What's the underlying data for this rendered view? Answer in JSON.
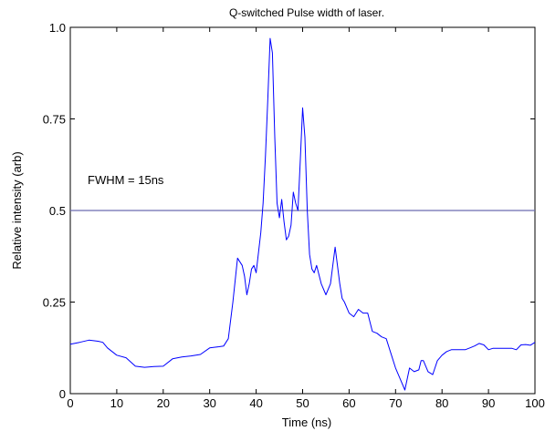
{
  "chart_data": {
    "type": "line",
    "title": "Q-switched Pulse width of laser.",
    "xlabel": "Time (ns)",
    "ylabel": "Relative intensity (arb)",
    "xlim": [
      0,
      100
    ],
    "ylim": [
      0,
      1.0
    ],
    "grid": false,
    "x_ticks": [
      0,
      10,
      20,
      30,
      40,
      50,
      60,
      70,
      80,
      90,
      100
    ],
    "x_tick_labels": [
      "0",
      "10",
      "20",
      "30",
      "40",
      "50",
      "60",
      "70",
      "80",
      "90",
      "100"
    ],
    "y_ticks": [
      0,
      0.25,
      0.5,
      0.75,
      1.0
    ],
    "y_tick_labels": [
      "0",
      "0.25",
      "0.5",
      "0.75",
      "1.0"
    ],
    "annotation": "FWHM = 15ns",
    "colors": {
      "trace": "#0000ff",
      "threshold": "#6b6bb0",
      "axes": "#000000"
    },
    "series": [
      {
        "values": [
          [
            0,
            0.135
          ],
          [
            2,
            0.14
          ],
          [
            4,
            0.146
          ],
          [
            6,
            0.143
          ],
          [
            7,
            0.14
          ],
          [
            8,
            0.125
          ],
          [
            10,
            0.105
          ],
          [
            12,
            0.098
          ],
          [
            14,
            0.075
          ],
          [
            16,
            0.072
          ],
          [
            18,
            0.074
          ],
          [
            20,
            0.075
          ],
          [
            22,
            0.095
          ],
          [
            24,
            0.1
          ],
          [
            26,
            0.103
          ],
          [
            28,
            0.107
          ],
          [
            30,
            0.125
          ],
          [
            32,
            0.128
          ],
          [
            33,
            0.13
          ],
          [
            34,
            0.15
          ],
          [
            35,
            0.25
          ],
          [
            36,
            0.37
          ],
          [
            37,
            0.35
          ],
          [
            37.5,
            0.32
          ],
          [
            38,
            0.27
          ],
          [
            38.5,
            0.3
          ],
          [
            39,
            0.34
          ],
          [
            39.5,
            0.35
          ],
          [
            40,
            0.33
          ],
          [
            41,
            0.44
          ],
          [
            41.5,
            0.52
          ],
          [
            42,
            0.65
          ],
          [
            42.5,
            0.8
          ],
          [
            43,
            0.97
          ],
          [
            43.5,
            0.93
          ],
          [
            44,
            0.7
          ],
          [
            44.5,
            0.52
          ],
          [
            45,
            0.48
          ],
          [
            45.5,
            0.53
          ],
          [
            46,
            0.47
          ],
          [
            46.5,
            0.42
          ],
          [
            47,
            0.43
          ],
          [
            47.5,
            0.46
          ],
          [
            48,
            0.55
          ],
          [
            48.5,
            0.52
          ],
          [
            49,
            0.5
          ],
          [
            49.5,
            0.64
          ],
          [
            50,
            0.78
          ],
          [
            50.5,
            0.7
          ],
          [
            51,
            0.5
          ],
          [
            51.5,
            0.38
          ],
          [
            52,
            0.34
          ],
          [
            52.5,
            0.33
          ],
          [
            53,
            0.35
          ],
          [
            54,
            0.3
          ],
          [
            55,
            0.27
          ],
          [
            56,
            0.3
          ],
          [
            57,
            0.4
          ],
          [
            58,
            0.3
          ],
          [
            58.5,
            0.26
          ],
          [
            59,
            0.25
          ],
          [
            60,
            0.22
          ],
          [
            61,
            0.21
          ],
          [
            62,
            0.23
          ],
          [
            63,
            0.22
          ],
          [
            64,
            0.22
          ],
          [
            65,
            0.17
          ],
          [
            66,
            0.165
          ],
          [
            67,
            0.155
          ],
          [
            68,
            0.15
          ],
          [
            69,
            0.11
          ],
          [
            70,
            0.07
          ],
          [
            71,
            0.04
          ],
          [
            72,
            0.01
          ],
          [
            73,
            0.07
          ],
          [
            74,
            0.06
          ],
          [
            75,
            0.065
          ],
          [
            75.5,
            0.09
          ],
          [
            76,
            0.09
          ],
          [
            77,
            0.06
          ],
          [
            78,
            0.052
          ],
          [
            79,
            0.09
          ],
          [
            80,
            0.105
          ],
          [
            81,
            0.115
          ],
          [
            82,
            0.12
          ],
          [
            84,
            0.12
          ],
          [
            85,
            0.12
          ],
          [
            86,
            0.125
          ],
          [
            87,
            0.13
          ],
          [
            88,
            0.137
          ],
          [
            89,
            0.133
          ],
          [
            90,
            0.12
          ],
          [
            91,
            0.124
          ],
          [
            93,
            0.124
          ],
          [
            95,
            0.124
          ],
          [
            96,
            0.12
          ],
          [
            97,
            0.133
          ],
          [
            98,
            0.134
          ],
          [
            99,
            0.132
          ],
          [
            100,
            0.14
          ]
        ]
      },
      {
        "values": [
          [
            0,
            0.5
          ],
          [
            100,
            0.5
          ]
        ]
      }
    ]
  }
}
